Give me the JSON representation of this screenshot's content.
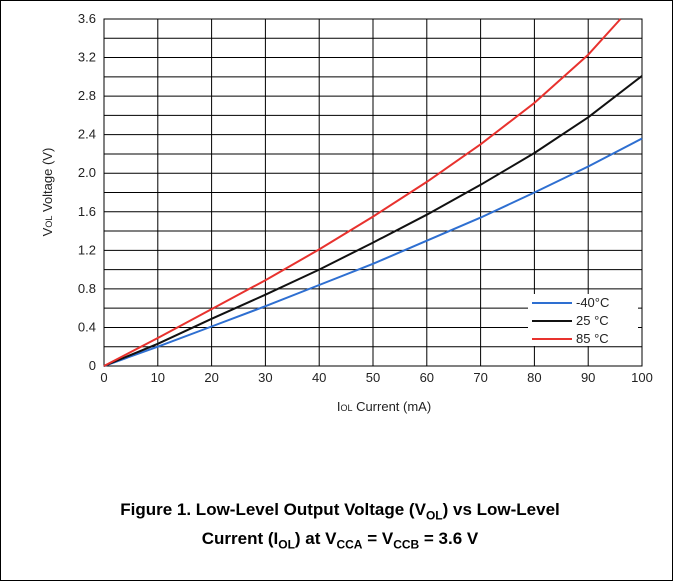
{
  "chart_data": {
    "type": "line",
    "xlabel": {
      "main": "I",
      "sub": "OL",
      "rest": " Current (mA)"
    },
    "ylabel": {
      "main": "V",
      "sub": "OL",
      "rest": " Voltage (V)"
    },
    "xlim": [
      0,
      100
    ],
    "ylim": [
      0,
      3.6
    ],
    "x_ticks": [
      "0",
      "10",
      "20",
      "30",
      "40",
      "50",
      "60",
      "70",
      "80",
      "90",
      "100"
    ],
    "y_ticks": [
      "0",
      "0.4",
      "0.8",
      "1.2",
      "1.6",
      "2.0",
      "2.4",
      "2.8",
      "3.2",
      "3.6"
    ],
    "grid": true,
    "legend_position": "bottom-right",
    "series": [
      {
        "name": "-40°C",
        "color": "#2e6fd1",
        "x": [
          0,
          10,
          20,
          30,
          40,
          50,
          60,
          70,
          80,
          90,
          100
        ],
        "y": [
          0,
          0.2,
          0.41,
          0.62,
          0.84,
          1.06,
          1.3,
          1.54,
          1.8,
          2.07,
          2.36
        ]
      },
      {
        "name": "25 °C",
        "color": "#111111",
        "x": [
          0,
          10,
          20,
          30,
          40,
          50,
          60,
          70,
          80,
          90,
          100
        ],
        "y": [
          0,
          0.23,
          0.49,
          0.74,
          1.0,
          1.28,
          1.57,
          1.88,
          2.21,
          2.58,
          3.01
        ]
      },
      {
        "name": "85 °C",
        "color": "#e8322e",
        "x": [
          0,
          10,
          20,
          30,
          40,
          50,
          60,
          70,
          80,
          90,
          96
        ],
        "y": [
          0,
          0.29,
          0.59,
          0.89,
          1.21,
          1.55,
          1.91,
          2.3,
          2.73,
          3.23,
          3.6
        ]
      }
    ]
  },
  "caption": {
    "line1": {
      "a": "Figure 1. Low-Level Output Voltage (V",
      "sub1": "OL",
      "b": ") vs Low-Level"
    },
    "line2": {
      "a": "Current (I",
      "sub1": "OL",
      "b": ") at V",
      "sub2": "CCA",
      "c": " = V",
      "sub3": "CCB",
      "d": " = 3.6 V"
    }
  }
}
